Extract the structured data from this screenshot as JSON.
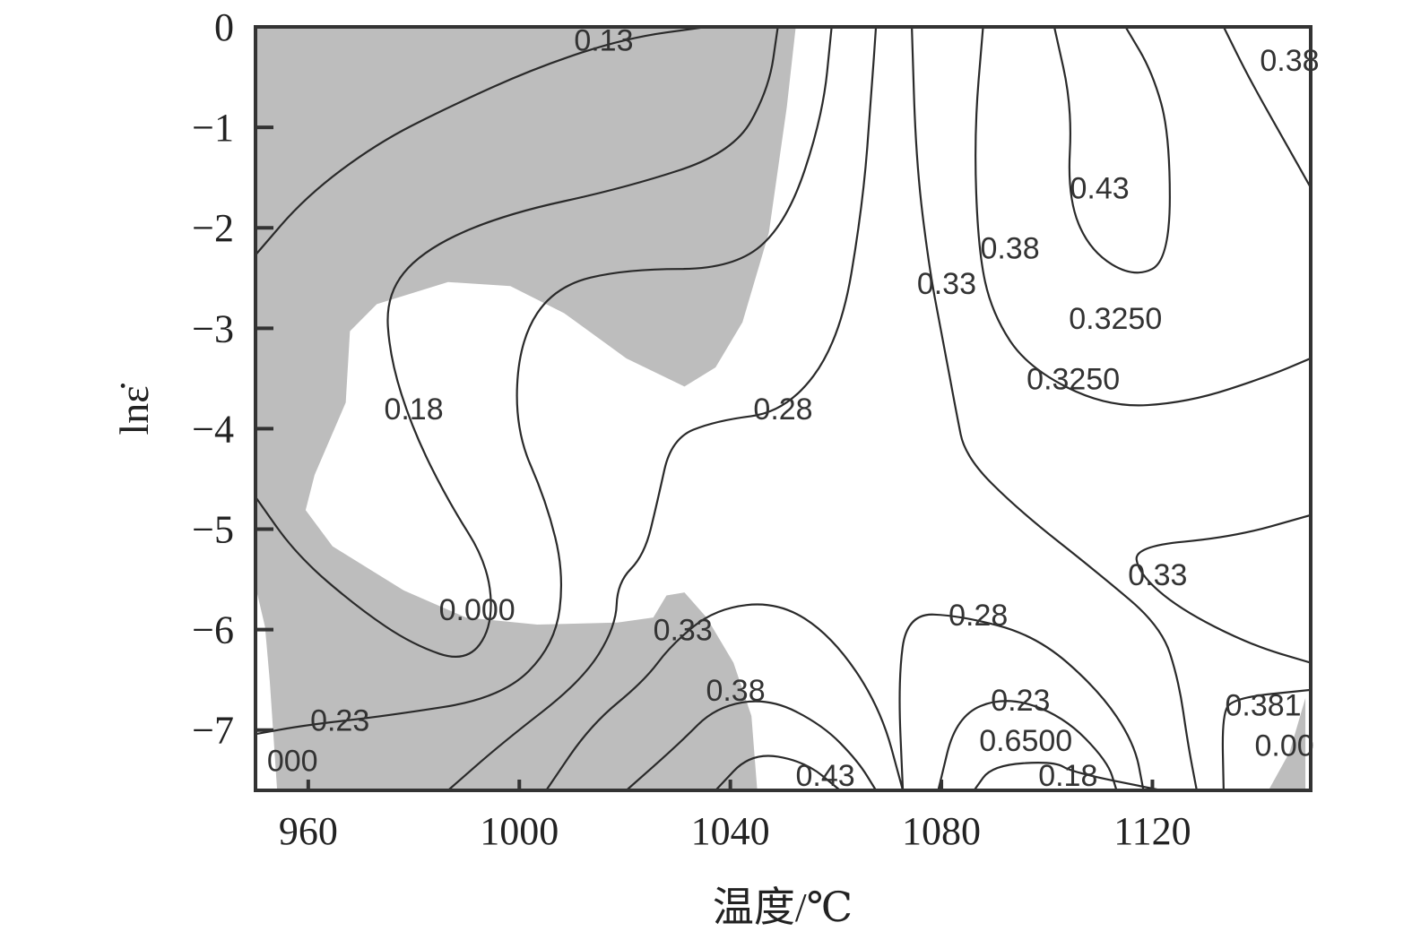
{
  "chart_data": {
    "type": "contour",
    "title": "",
    "xlabel": "温度/℃",
    "ylabel": "lnε̇",
    "xlim": [
      950,
      1150
    ],
    "ylim": [
      -7.6,
      0
    ],
    "xticks": [
      960,
      1000,
      1040,
      1080,
      1120
    ],
    "yticks": [
      0,
      -1,
      -2,
      -3,
      -4,
      -5,
      -6,
      -7
    ],
    "ytick_labels": [
      "0",
      "−1",
      "−2",
      "−3",
      "−4",
      "−5",
      "−6",
      "−7"
    ],
    "grid": false,
    "colors": {
      "instability_region": "#bdbdbd",
      "contour": "#2a2a2a",
      "axis": "#333333"
    },
    "shaded_regions": [
      [
        [
          950,
          0
        ],
        [
          1052.4,
          0
        ],
        [
          1050.7,
          -0.8
        ],
        [
          1047.3,
          -2.05
        ],
        [
          1042.3,
          -2.94
        ],
        [
          1037.2,
          -3.39
        ],
        [
          1031.3,
          -3.58
        ],
        [
          1020.3,
          -3.3
        ],
        [
          1008.5,
          -2.85
        ],
        [
          998.3,
          -2.58
        ],
        [
          986.5,
          -2.54
        ],
        [
          973,
          -2.76
        ],
        [
          967.9,
          -3.03
        ],
        [
          967.1,
          -3.74
        ],
        [
          961.2,
          -4.46
        ],
        [
          959.5,
          -4.81
        ],
        [
          964.6,
          -5.17
        ],
        [
          978.1,
          -5.61
        ],
        [
          989.9,
          -5.88
        ],
        [
          1003.4,
          -5.95
        ],
        [
          1018.6,
          -5.93
        ],
        [
          1025.4,
          -5.88
        ],
        [
          1027.9,
          -5.66
        ],
        [
          1031.3,
          -5.63
        ],
        [
          1035.5,
          -5.88
        ],
        [
          1040.6,
          -6.33
        ],
        [
          1044,
          -6.86
        ],
        [
          1045.1,
          -7.6
        ],
        [
          954.1,
          -7.6
        ],
        [
          952.7,
          -6.51
        ],
        [
          951.8,
          -5.97
        ],
        [
          950,
          -5.57
        ]
      ],
      [
        [
          1149,
          -6.68
        ],
        [
          1149,
          -7.6
        ],
        [
          1142,
          -7.6
        ],
        [
          1146,
          -7.22
        ],
        [
          1148,
          -6.86
        ]
      ]
    ],
    "contours": [
      {
        "level": "0.13",
        "points": [
          [
            950,
            -2.27
          ],
          [
            959.5,
            -1.69
          ],
          [
            973,
            -1.16
          ],
          [
            986.5,
            -0.8
          ],
          [
            1003.4,
            -0.4
          ],
          [
            1020.3,
            -0.11
          ],
          [
            1035.5,
            0
          ]
        ]
      },
      {
        "level": "0.18",
        "points": [
          [
            1049,
            0
          ],
          [
            1047.3,
            -0.62
          ],
          [
            1040.6,
            -1.25
          ],
          [
            1020.3,
            -1.6
          ],
          [
            996.7,
            -1.87
          ],
          [
            981.5,
            -2.23
          ],
          [
            974.7,
            -2.67
          ],
          [
            975.5,
            -3.3
          ],
          [
            979.8,
            -4.01
          ],
          [
            986.5,
            -4.72
          ],
          [
            994.1,
            -5.35
          ],
          [
            995,
            -5.97
          ],
          [
            989.9,
            -6.33
          ],
          [
            979.8,
            -6.15
          ],
          [
            969.6,
            -5.79
          ],
          [
            957.8,
            -5.26
          ],
          [
            950,
            -4.68
          ]
        ]
      },
      {
        "level": "0.23",
        "points": [
          [
            1059.2,
            0
          ],
          [
            1057.5,
            -0.89
          ],
          [
            1050.7,
            -1.96
          ],
          [
            1040.6,
            -2.41
          ],
          [
            1020.3,
            -2.41
          ],
          [
            1006.8,
            -2.58
          ],
          [
            1000,
            -3.12
          ],
          [
            999.2,
            -4.01
          ],
          [
            1005.1,
            -4.72
          ],
          [
            1008.5,
            -5.44
          ],
          [
            1006.8,
            -6.15
          ],
          [
            996.7,
            -6.68
          ],
          [
            974.7,
            -6.86
          ],
          [
            959.5,
            -6.95
          ],
          [
            950,
            -7.04
          ]
        ]
      },
      {
        "level": "0.28",
        "points": [
          [
            1067.6,
            0
          ],
          [
            1066.8,
            -0.62
          ],
          [
            1065.1,
            -1.78
          ],
          [
            1060.8,
            -3.12
          ],
          [
            1050.7,
            -3.83
          ],
          [
            1037.2,
            -3.92
          ],
          [
            1028.8,
            -4.1
          ],
          [
            1026.2,
            -4.72
          ],
          [
            1023.7,
            -5.26
          ],
          [
            1018.6,
            -5.53
          ],
          [
            1018.3,
            -5.97
          ],
          [
            1011.9,
            -6.51
          ],
          [
            996.7,
            -7.13
          ],
          [
            986.5,
            -7.6
          ]
        ]
      },
      {
        "level": "0.33",
        "points": [
          [
            1074.4,
            0
          ],
          [
            1075.2,
            -1.34
          ],
          [
            1077.7,
            -2.41
          ],
          [
            1080.3,
            -3.12
          ],
          [
            1082.8,
            -3.83
          ],
          [
            1084.5,
            -4.28
          ],
          [
            1094.6,
            -4.81
          ],
          [
            1109.8,
            -5.44
          ],
          [
            1121.7,
            -5.97
          ],
          [
            1125,
            -6.51
          ],
          [
            1126.7,
            -7.13
          ],
          [
            1128.4,
            -7.6
          ]
        ]
      },
      {
        "level": "0.33",
        "points": [
          [
            1005.1,
            -7.6
          ],
          [
            1013.5,
            -6.95
          ],
          [
            1023.7,
            -6.51
          ],
          [
            1028.8,
            -6.15
          ],
          [
            1037.2,
            -5.79
          ],
          [
            1049,
            -5.72
          ],
          [
            1059.2,
            -6.06
          ],
          [
            1068.4,
            -6.77
          ],
          [
            1072.7,
            -7.6
          ]
        ]
      },
      {
        "level": "0.38",
        "points": [
          [
            1020.3,
            -7.6
          ],
          [
            1030.4,
            -7.13
          ],
          [
            1037.2,
            -6.77
          ],
          [
            1047.3,
            -6.68
          ],
          [
            1057.5,
            -6.95
          ],
          [
            1064.2,
            -7.31
          ],
          [
            1067.6,
            -7.6
          ]
        ]
      },
      {
        "level": "0.43",
        "points": [
          [
            1037.2,
            -7.6
          ],
          [
            1044,
            -7.22
          ],
          [
            1054.1,
            -7.31
          ],
          [
            1060.8,
            -7.6
          ]
        ]
      },
      {
        "level": "0.38",
        "points": [
          [
            1087.9,
            0
          ],
          [
            1086.2,
            -1.07
          ],
          [
            1087,
            -2.23
          ],
          [
            1089.6,
            -2.85
          ],
          [
            1096.3,
            -3.39
          ],
          [
            1111.5,
            -3.79
          ],
          [
            1126.7,
            -3.74
          ],
          [
            1141.9,
            -3.48
          ],
          [
            1150,
            -3.3
          ]
        ]
      },
      {
        "level": "0.43",
        "points": [
          [
            1101.4,
            0
          ],
          [
            1104.8,
            -0.8
          ],
          [
            1103.9,
            -1.69
          ],
          [
            1108.1,
            -2.23
          ],
          [
            1116.6,
            -2.5
          ],
          [
            1123.3,
            -2.32
          ],
          [
            1123.3,
            -1.07
          ],
          [
            1120,
            -0.45
          ],
          [
            1114.9,
            0
          ]
        ]
      },
      {
        "level": "0.38",
        "points": [
          [
            1133.5,
            0
          ],
          [
            1138.5,
            -0.53
          ],
          [
            1145.3,
            -1.16
          ],
          [
            1150,
            -1.6
          ]
        ]
      },
      {
        "level": "0.33",
        "points": [
          [
            1150,
            -4.86
          ],
          [
            1135.2,
            -5.08
          ],
          [
            1116.6,
            -5.17
          ],
          [
            1117.4,
            -5.44
          ],
          [
            1125,
            -5.79
          ],
          [
            1138.5,
            -6.15
          ],
          [
            1150,
            -6.33
          ]
        ]
      },
      {
        "level": "0.28",
        "points": [
          [
            1072.7,
            -7.6
          ],
          [
            1071.8,
            -6.51
          ],
          [
            1073.5,
            -5.84
          ],
          [
            1083.6,
            -5.86
          ],
          [
            1098,
            -6.06
          ],
          [
            1109.8,
            -6.6
          ],
          [
            1116.6,
            -7.13
          ],
          [
            1118.3,
            -7.6
          ]
        ]
      },
      {
        "level": "0.23",
        "points": [
          [
            1079.4,
            -7.6
          ],
          [
            1082.8,
            -6.86
          ],
          [
            1092.1,
            -6.66
          ],
          [
            1103.1,
            -6.86
          ],
          [
            1111.5,
            -7.31
          ],
          [
            1113.2,
            -7.6
          ]
        ]
      },
      {
        "level": "0.18",
        "points": [
          [
            1086.2,
            -7.6
          ],
          [
            1089.6,
            -7.35
          ],
          [
            1101.4,
            -7.31
          ],
          [
            1104.8,
            -7.42
          ],
          [
            1121.7,
            -7.6
          ]
        ]
      },
      {
        "level": "0.38",
        "points": [
          [
            1133.5,
            -7.6
          ],
          [
            1133.2,
            -6.86
          ],
          [
            1135.2,
            -6.68
          ],
          [
            1150,
            -6.6
          ]
        ]
      }
    ],
    "contour_labels": [
      {
        "text": "0.13",
        "x": 1016,
        "y": -0.13
      },
      {
        "text": "0.18",
        "x": 980,
        "y": -3.8
      },
      {
        "text": "0.28",
        "x": 1050,
        "y": -3.8
      },
      {
        "text": "0.33",
        "x": 1081,
        "y": -2.55
      },
      {
        "text": "0.38",
        "x": 1093,
        "y": -2.2
      },
      {
        "text": "0.43",
        "x": 1110,
        "y": -1.6
      },
      {
        "text": "0.3250",
        "x": 1113,
        "y": -2.9
      },
      {
        "text": "0.3250",
        "x": 1105,
        "y": -3.5
      },
      {
        "text": "0.38",
        "x": 1146,
        "y": -0.33
      },
      {
        "text": "0.000",
        "x": 992,
        "y": -5.8
      },
      {
        "text": "0.33",
        "x": 1031,
        "y": -6.0
      },
      {
        "text": "0.38",
        "x": 1041,
        "y": -6.6
      },
      {
        "text": "0.43",
        "x": 1058,
        "y": -7.45
      },
      {
        "text": "0.23",
        "x": 966,
        "y": -6.9
      },
      {
        "text": "000",
        "x": 957,
        "y": -7.3
      },
      {
        "text": "0.33",
        "x": 1121,
        "y": -5.45
      },
      {
        "text": "0.28",
        "x": 1087,
        "y": -5.85
      },
      {
        "text": "0.23",
        "x": 1095,
        "y": -6.7
      },
      {
        "text": "0.6500",
        "x": 1096,
        "y": -7.1
      },
      {
        "text": "0.18",
        "x": 1104,
        "y": -7.45
      },
      {
        "text": "0.381",
        "x": 1141,
        "y": -6.75
      },
      {
        "text": "0.00",
        "x": 1145,
        "y": -7.15
      }
    ]
  }
}
